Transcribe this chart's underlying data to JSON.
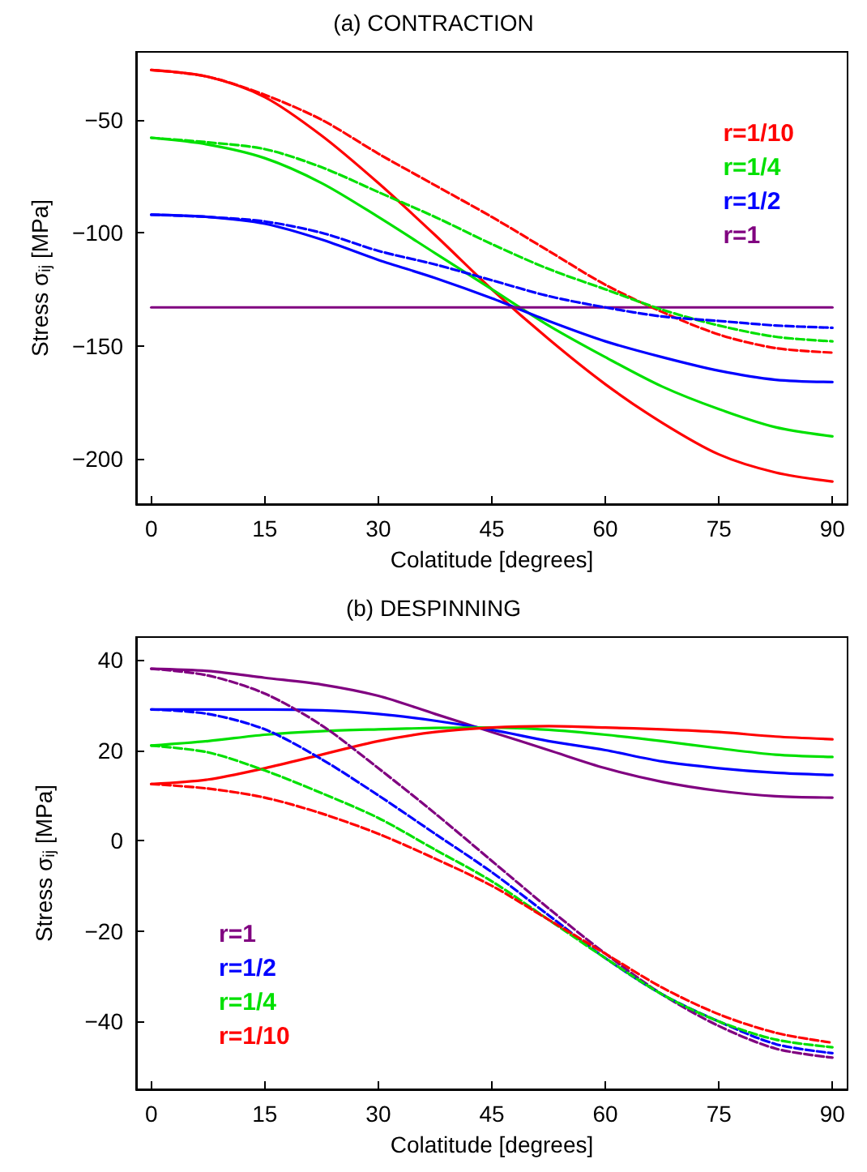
{
  "chart_data": [
    {
      "type": "line",
      "title": "(a) CONTRACTION",
      "xlabel": "Colatitude [degrees]",
      "ylabel": "Stress σ$_{ij}$ [MPa]",
      "x": [
        0,
        7.5,
        15,
        22.5,
        30,
        37.5,
        45,
        52.5,
        60,
        67.5,
        75,
        82.5,
        90
      ],
      "xlim": [
        -2,
        92
      ],
      "xticks": [
        0,
        15,
        30,
        45,
        60,
        75,
        90
      ],
      "ylim": [
        -220,
        -20
      ],
      "yticks": [
        -200,
        -150,
        -100,
        -50
      ],
      "grid": false,
      "legend": "top right",
      "marker": "none",
      "series": [
        {
          "name": "r=1/10",
          "color": "#ff0000",
          "line_style": "solid",
          "values": [
            -28,
            -31,
            -40,
            -57,
            -78,
            -101,
            -125,
            -147,
            -167,
            -184,
            -198,
            -206,
            -210
          ]
        },
        {
          "name": "r=1/4",
          "color": "#00e000",
          "line_style": "solid",
          "values": [
            -58,
            -61,
            -67,
            -78,
            -93,
            -109,
            -125,
            -141,
            -155,
            -168,
            -178,
            -186,
            -190
          ]
        },
        {
          "name": "r=1/2",
          "color": "#0000ff",
          "line_style": "solid",
          "values": [
            -92,
            -93,
            -96,
            -103,
            -112,
            -120,
            -129,
            -139,
            -148,
            -155,
            -161,
            -165,
            -166
          ]
        },
        {
          "name": "r=1",
          "color": "#800080",
          "line_style": "solid",
          "values": [
            -133,
            -133,
            -133,
            -133,
            -133,
            -133,
            -133,
            -133,
            -133,
            -133,
            -133,
            -133,
            -133
          ]
        },
        {
          "color": "#ff0000",
          "line_style": "dashed",
          "values": [
            -28,
            -31,
            -39,
            -50,
            -65,
            -79,
            -93,
            -108,
            -123,
            -135,
            -145,
            -151,
            -153
          ]
        },
        {
          "color": "#00e000",
          "line_style": "dashed",
          "values": [
            -58,
            -60,
            -63,
            -71,
            -82,
            -93,
            -105,
            -116,
            -125,
            -134,
            -141,
            -146,
            -148
          ]
        },
        {
          "color": "#0000ff",
          "line_style": "dashed",
          "values": [
            -92,
            -93,
            -95,
            -100,
            -108,
            -114,
            -121,
            -128,
            -133,
            -137,
            -139,
            -141,
            -142
          ]
        }
      ]
    },
    {
      "type": "line",
      "title": "(b) DESPINNING",
      "xlabel": "Colatitude [degrees]",
      "ylabel": "Stress σ$_{ij}$ [MPa]",
      "x": [
        0,
        7.5,
        15,
        22.5,
        30,
        37.5,
        45,
        52.5,
        60,
        67.5,
        75,
        82.5,
        90
      ],
      "xlim": [
        -2,
        92
      ],
      "xticks": [
        0,
        15,
        30,
        45,
        60,
        75,
        90
      ],
      "ylim": [
        -55,
        45
      ],
      "yticks": [
        -40,
        -20,
        0,
        20,
        40
      ],
      "grid": false,
      "legend": "bottom left",
      "marker": "none",
      "series": [
        {
          "name": "r=1",
          "color": "#800080",
          "line_style": "solid",
          "values": [
            38,
            37.5,
            36,
            34.5,
            32,
            28,
            24,
            20,
            16,
            13,
            11,
            9.8,
            9.5
          ]
        },
        {
          "name": "r=1/2",
          "color": "#0000ff",
          "line_style": "solid",
          "values": [
            29,
            29,
            29,
            28.8,
            28,
            26.5,
            24.5,
            22,
            20,
            17.5,
            16,
            15,
            14.5
          ]
        },
        {
          "name": "r=1/4",
          "color": "#00e000",
          "line_style": "solid",
          "values": [
            21,
            22,
            23.4,
            24.2,
            24.6,
            24.9,
            25,
            24.5,
            23.4,
            22,
            20.4,
            19,
            18.5
          ]
        },
        {
          "name": "r=1/10",
          "color": "#ff0000",
          "line_style": "solid",
          "values": [
            12.5,
            13.5,
            16,
            19,
            22,
            24,
            25,
            25.3,
            25,
            24.6,
            24,
            23,
            22.4
          ]
        },
        {
          "color": "#800080",
          "line_style": "dashed",
          "values": [
            38,
            36.5,
            32.5,
            25.5,
            16,
            6,
            -4.5,
            -15,
            -25,
            -34,
            -41,
            -46,
            -48
          ]
        },
        {
          "color": "#0000ff",
          "line_style": "dashed",
          "values": [
            29,
            28,
            24.6,
            18,
            10,
            1.5,
            -7,
            -16.5,
            -26,
            -34,
            -40,
            -45,
            -47
          ]
        },
        {
          "color": "#00e000",
          "line_style": "dashed",
          "values": [
            21,
            19.5,
            15.5,
            10.5,
            5,
            -2,
            -9,
            -17.5,
            -26,
            -34,
            -40,
            -44,
            -45.7
          ]
        },
        {
          "color": "#ff0000",
          "line_style": "dashed",
          "values": [
            12.5,
            11.5,
            9.5,
            6,
            1.5,
            -4,
            -10,
            -17.5,
            -25,
            -32.5,
            -38.4,
            -42.5,
            -44.7
          ]
        }
      ]
    }
  ]
}
